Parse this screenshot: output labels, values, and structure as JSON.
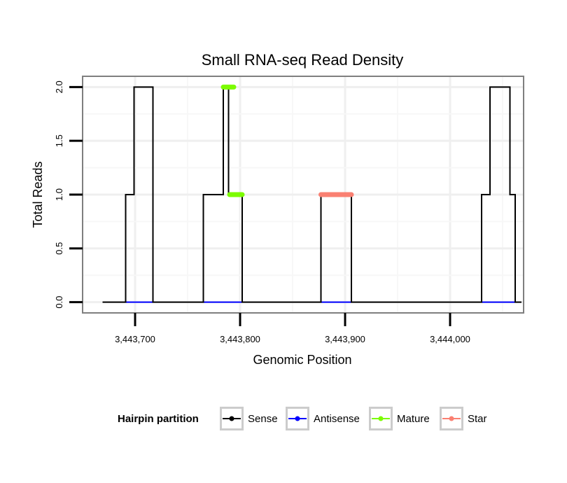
{
  "chart_data": {
    "type": "line",
    "title": "Small RNA-seq Read Density",
    "xlabel": "Genomic Position",
    "ylabel": "Total Reads",
    "xlim": [
      3443650,
      3444070
    ],
    "ylim": [
      -0.1,
      2.1
    ],
    "x_ticks": [
      3443700,
      3443800,
      3443900,
      3444000
    ],
    "x_tick_labels": [
      "3,443,700",
      "3,443,800",
      "3,443,900",
      "3,444,000"
    ],
    "y_ticks": [
      0,
      0.5,
      1,
      1.5,
      2
    ],
    "y_tick_labels": [
      "0.0",
      "0.5",
      "1.0",
      "1.5",
      "2.0"
    ],
    "grid": true,
    "legend": {
      "title": "Hairpin partition",
      "position": "bottom",
      "entries": [
        {
          "name": "Sense",
          "color": "#000000"
        },
        {
          "name": "Antisense",
          "color": "#0000ff"
        },
        {
          "name": "Mature",
          "color": "#7cfc00"
        },
        {
          "name": "Star",
          "color": "#fa8072"
        }
      ]
    },
    "series": [
      {
        "name": "Sense",
        "color": "#000000",
        "kind": "line",
        "points": [
          [
            3443669,
            0
          ],
          [
            3443691,
            0
          ],
          [
            3443691,
            1
          ],
          [
            3443699,
            1
          ],
          [
            3443699,
            2
          ],
          [
            3443717,
            2
          ],
          [
            3443717,
            0
          ],
          [
            3443765,
            0
          ],
          [
            3443765,
            1
          ],
          [
            3443784,
            1
          ],
          [
            3443784,
            2
          ],
          [
            3443789,
            2
          ],
          [
            3443789,
            1
          ],
          [
            3443802,
            1
          ],
          [
            3443802,
            0
          ],
          [
            3443877,
            0
          ],
          [
            3443877,
            1
          ],
          [
            3443906,
            1
          ],
          [
            3443906,
            0
          ],
          [
            3444030,
            0
          ],
          [
            3444030,
            1
          ],
          [
            3444038,
            1
          ],
          [
            3444038,
            2
          ],
          [
            3444057,
            2
          ],
          [
            3444057,
            1
          ],
          [
            3444062,
            1
          ],
          [
            3444062,
            0
          ],
          [
            3444068,
            0
          ]
        ]
      },
      {
        "name": "Antisense",
        "color": "#0000ff",
        "kind": "segments",
        "segments": [
          [
            3443691,
            3443717,
            0
          ],
          [
            3443765,
            3443802,
            0
          ],
          [
            3443877,
            3443906,
            0
          ],
          [
            3444030,
            3444062,
            0
          ]
        ]
      },
      {
        "name": "Mature",
        "color": "#7cfc00",
        "kind": "segments",
        "segments": [
          [
            3443784,
            3443794,
            2
          ],
          [
            3443790,
            3443802,
            1
          ]
        ]
      },
      {
        "name": "Star",
        "color": "#fa8072",
        "kind": "segments",
        "segments": [
          [
            3443877,
            3443906,
            1
          ]
        ]
      }
    ]
  }
}
